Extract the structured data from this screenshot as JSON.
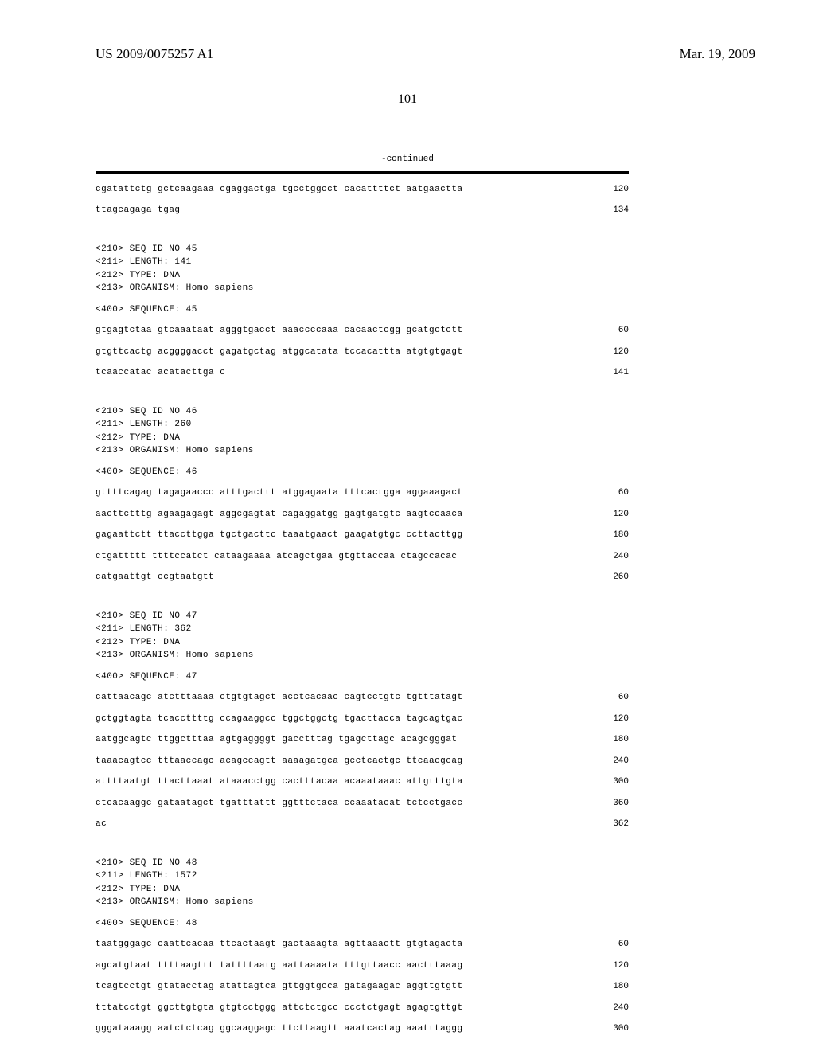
{
  "header": {
    "doc_number": "US 2009/0075257 A1",
    "doc_date": "Mar. 19, 2009"
  },
  "page_number": "101",
  "continued_label": "-continued",
  "sequences": [
    {
      "lines": [
        {
          "text": "cgatattctg gctcaagaaa cgaggactga tgcctggcct cacattttct aatgaactta",
          "num": "120"
        },
        {
          "text": "ttagcagaga tgag",
          "num": "134"
        }
      ]
    },
    {
      "meta": [
        "<210> SEQ ID NO 45",
        "<211> LENGTH: 141",
        "<212> TYPE: DNA",
        "<213> ORGANISM: Homo sapiens"
      ],
      "sequence_label": "<400> SEQUENCE: 45",
      "lines": [
        {
          "text": "gtgagtctaa gtcaaataat agggtgacct aaaccccaaa cacaactcgg gcatgctctt",
          "num": "60"
        },
        {
          "text": "gtgttcactg acggggacct gagatgctag atggcatata tccacattta atgtgtgagt",
          "num": "120"
        },
        {
          "text": "tcaaccatac acatacttga c",
          "num": "141"
        }
      ]
    },
    {
      "meta": [
        "<210> SEQ ID NO 46",
        "<211> LENGTH: 260",
        "<212> TYPE: DNA",
        "<213> ORGANISM: Homo sapiens"
      ],
      "sequence_label": "<400> SEQUENCE: 46",
      "lines": [
        {
          "text": "gttttcagag tagagaaccc atttgacttt atggagaata tttcactgga aggaaagact",
          "num": "60"
        },
        {
          "text": "aacttctttg agaagagagt aggcgagtat cagaggatgg gagtgatgtc aagtccaaca",
          "num": "120"
        },
        {
          "text": "gagaattctt ttaccttgga tgctgacttc taaatgaact gaagatgtgc ccttacttgg",
          "num": "180"
        },
        {
          "text": "ctgattttt ttttccatct cataagaaaa atcagctgaa gtgttaccaa ctagccacac",
          "num": "240"
        },
        {
          "text": "catgaattgt ccgtaatgtt",
          "num": "260"
        }
      ]
    },
    {
      "meta": [
        "<210> SEQ ID NO 47",
        "<211> LENGTH: 362",
        "<212> TYPE: DNA",
        "<213> ORGANISM: Homo sapiens"
      ],
      "sequence_label": "<400> SEQUENCE: 47",
      "lines": [
        {
          "text": "cattaacagc atctttaaaa ctgtgtagct acctcacaac cagtcctgtc tgtttatagt",
          "num": "60"
        },
        {
          "text": "gctggtagta tcaccttttg ccagaaggcc tggctggctg tgacttacca tagcagtgac",
          "num": "120"
        },
        {
          "text": "aatggcagtc ttggctttaa agtgaggggt gacctttag tgagcttagc acagcgggat",
          "num": "180"
        },
        {
          "text": "taaacagtcc tttaaccagc acagccagtt aaaagatgca gcctcactgc ttcaacgcag",
          "num": "240"
        },
        {
          "text": "attttaatgt ttacttaaat ataaacctgg cactttacaa acaaataaac attgtttgta",
          "num": "300"
        },
        {
          "text": "ctcacaaggc gataatagct tgatttattt ggtttctaca ccaaatacat tctcctgacc",
          "num": "360"
        },
        {
          "text": "ac",
          "num": "362"
        }
      ]
    },
    {
      "meta": [
        "<210> SEQ ID NO 48",
        "<211> LENGTH: 1572",
        "<212> TYPE: DNA",
        "<213> ORGANISM: Homo sapiens"
      ],
      "sequence_label": "<400> SEQUENCE: 48",
      "lines": [
        {
          "text": "taatgggagc caattcacaa ttcactaagt gactaaagta agttaaactt gtgtagacta",
          "num": "60"
        },
        {
          "text": "agcatgtaat ttttaagttt tattttaatg aattaaaata tttgttaacc aactttaaag",
          "num": "120"
        },
        {
          "text": "tcagtcctgt gtatacctag atattagtca gttggtgcca gatagaagac aggttgtgtt",
          "num": "180"
        },
        {
          "text": "tttatcctgt ggcttgtgta gtgtcctggg attctctgcc ccctctgagt agagtgttgt",
          "num": "240"
        },
        {
          "text": "gggataaagg aatctctcag ggcaaggagc ttcttaagtt aaatcactag aaatttaggg",
          "num": "300"
        }
      ]
    }
  ]
}
